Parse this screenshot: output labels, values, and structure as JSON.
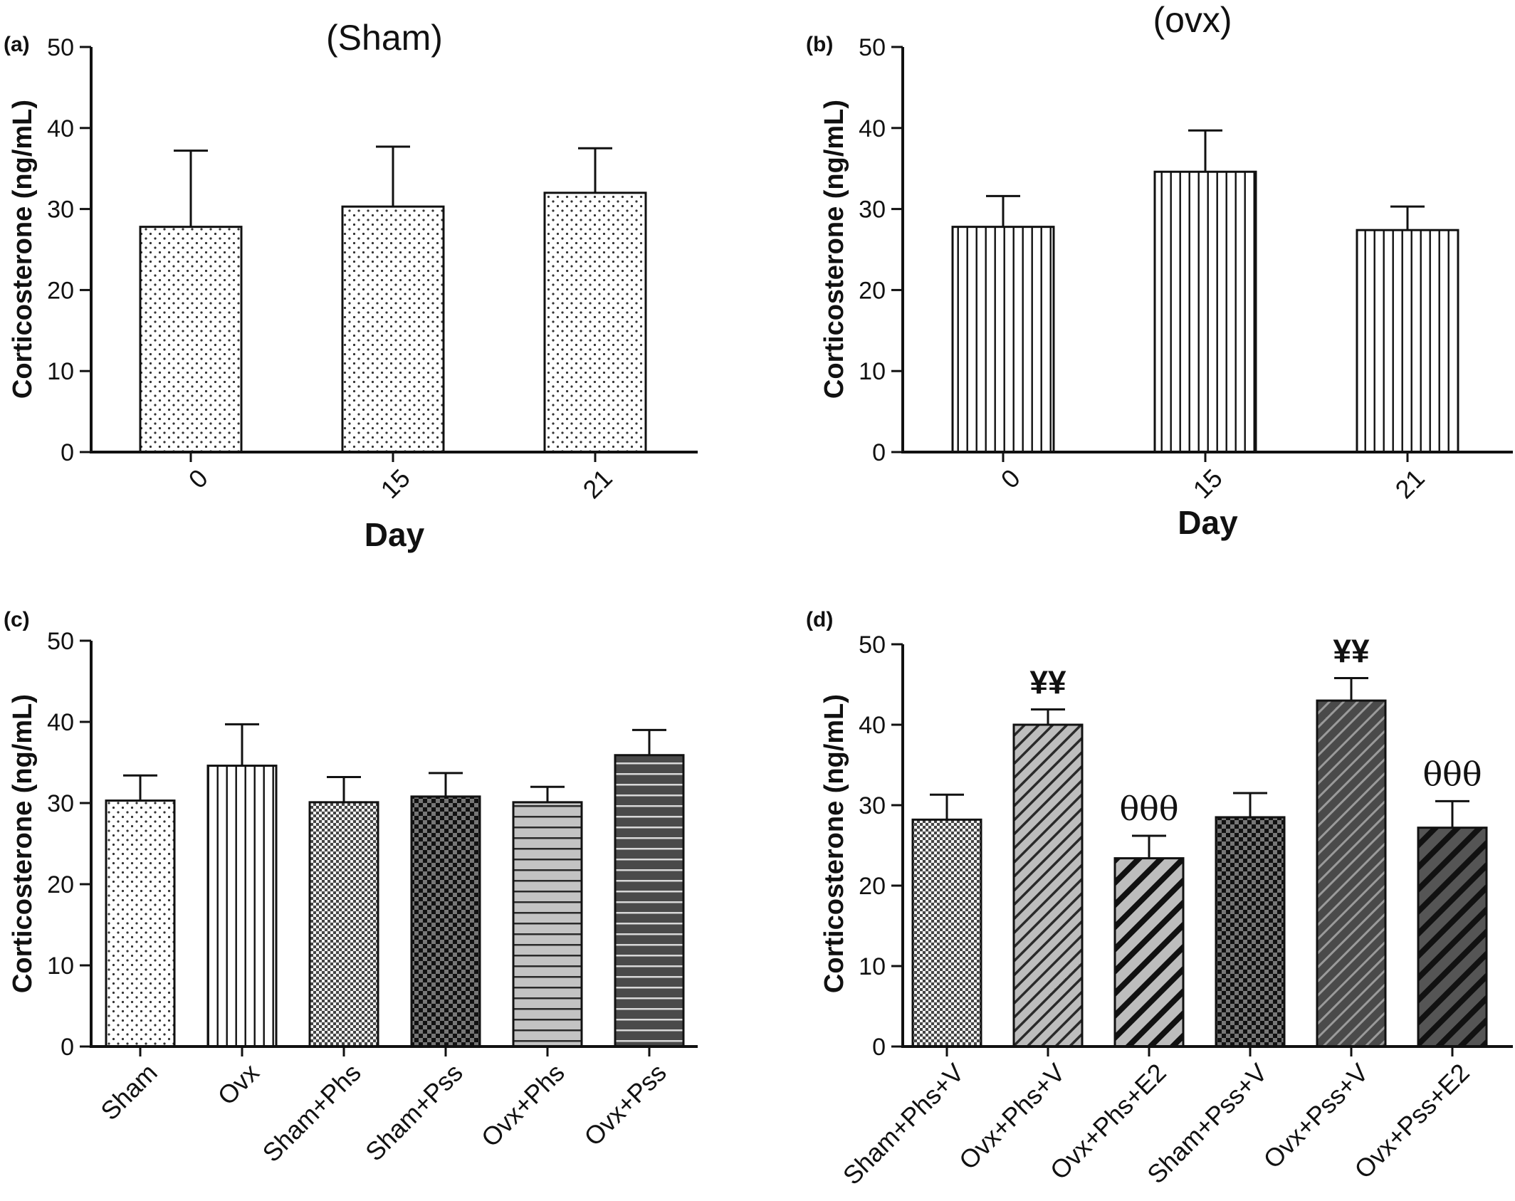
{
  "chart_data": [
    {
      "id": "a",
      "type": "bar",
      "panel_label": "(a)",
      "title": "(Sham)",
      "xlabel": "Day",
      "ylabel": "Corticosterone (ng/mL)",
      "ylim": [
        0,
        50
      ],
      "yticks": [
        0,
        10,
        20,
        30,
        40,
        50
      ],
      "categories": [
        "0",
        "15",
        "21"
      ],
      "rotate_labels": true,
      "values": [
        27.8,
        30.3,
        32.0
      ],
      "errors": [
        9.4,
        7.4,
        5.5
      ],
      "patterns": [
        "dots",
        "dots",
        "dots"
      ],
      "annotations": [
        "",
        "",
        ""
      ],
      "grid": false,
      "legend": "none"
    },
    {
      "id": "b",
      "type": "bar",
      "panel_label": "(b)",
      "title": "(ovx)",
      "xlabel": "Day",
      "ylabel": "Corticosterone (ng/mL)",
      "ylim": [
        0,
        50
      ],
      "yticks": [
        0,
        10,
        20,
        30,
        40,
        50
      ],
      "categories": [
        "0",
        "15",
        "21"
      ],
      "rotate_labels": true,
      "values": [
        27.8,
        34.6,
        27.4
      ],
      "errors": [
        3.8,
        5.1,
        2.9
      ],
      "patterns": [
        "vlines",
        "vlines",
        "vlines"
      ],
      "annotations": [
        "",
        "",
        ""
      ],
      "grid": false,
      "legend": "none"
    },
    {
      "id": "c",
      "type": "bar",
      "panel_label": "(c)",
      "title": "",
      "xlabel": "",
      "ylabel": "Corticosterone (ng/mL)",
      "ylim": [
        0,
        50
      ],
      "yticks": [
        0,
        10,
        20,
        30,
        40,
        50
      ],
      "categories": [
        "Sham",
        "Ovx",
        "Sham+Phs",
        "Sham+Pss",
        "Ovx+Phs",
        "Ovx+Pss"
      ],
      "rotate_labels": true,
      "values": [
        30.3,
        34.6,
        30.1,
        30.8,
        30.1,
        35.9
      ],
      "errors": [
        3.1,
        5.1,
        3.1,
        2.9,
        1.9,
        3.1
      ],
      "patterns": [
        "dots",
        "vlines",
        "checker-fine",
        "checker-dark",
        "hlines-light",
        "hlines-dark"
      ],
      "annotations": [
        "",
        "",
        "",
        "",
        "",
        ""
      ],
      "grid": false,
      "legend": "none"
    },
    {
      "id": "d",
      "type": "bar",
      "panel_label": "(d)",
      "title": "",
      "xlabel": "",
      "ylabel": "Corticosterone (ng/mL)",
      "ylim": [
        0,
        50
      ],
      "yticks": [
        0,
        10,
        20,
        30,
        40,
        50
      ],
      "categories": [
        "Sham+Phs+V",
        "Ovx+Phs+V",
        "Ovx+Phs+E2",
        "Sham+Pss+V",
        "Ovx+Pss+V",
        "Ovx+Pss+E2"
      ],
      "rotate_labels": true,
      "values": [
        28.2,
        40.0,
        23.4,
        28.5,
        43.0,
        27.2
      ],
      "errors": [
        3.1,
        1.9,
        2.8,
        3.0,
        2.8,
        3.3
      ],
      "patterns": [
        "checker-fine",
        "diag-light",
        "diag-bold-light",
        "checker-dark",
        "diag-dark",
        "diag-bold-dark"
      ],
      "annotations": [
        "",
        "¥¥",
        "θθθ",
        "",
        "¥¥",
        "θθθ"
      ],
      "grid": false,
      "legend": "none"
    }
  ]
}
